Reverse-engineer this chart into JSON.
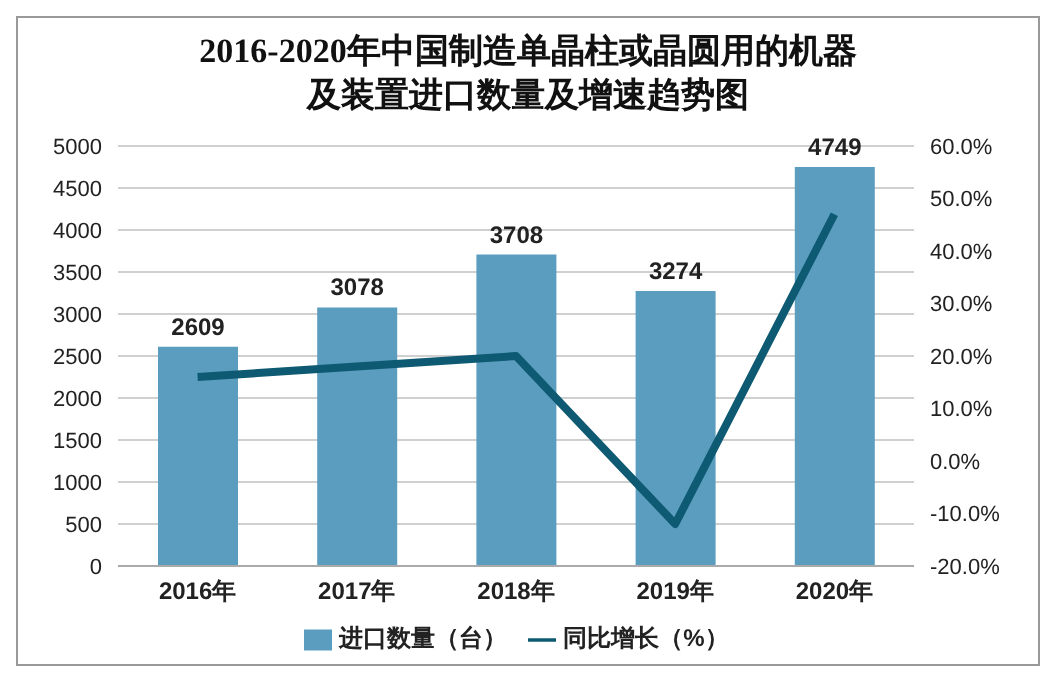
{
  "chart_data": {
    "type": "bar",
    "title": "2016-2020年中国制造单晶柱或晶圆用的机器及装置进口数量及增速趋势图",
    "categories": [
      "2016年",
      "2017年",
      "2018年",
      "2019年",
      "2020年"
    ],
    "series": [
      {
        "name": "进口数量（台）",
        "color": "#5b9dbf",
        "values": [
          2609,
          3078,
          3708,
          3274,
          4749
        ],
        "value_labels": [
          "2609",
          "3078",
          "3708",
          "3274",
          "4749"
        ]
      },
      {
        "name": "同比增长（%）",
        "type": "line",
        "axis": "y2",
        "color": "#0e5a72",
        "values": [
          16,
          18,
          20,
          -12,
          47
        ]
      }
    ],
    "ylim": [
      0,
      5000
    ],
    "yticks": [
      0,
      500,
      1000,
      1500,
      2000,
      2500,
      3000,
      3500,
      4000,
      4500,
      5000
    ],
    "y2lim": [
      -20,
      60
    ],
    "y2ticks": [
      {
        "value": -20,
        "label": "-20.0%"
      },
      {
        "value": -10,
        "label": "-10.0%"
      },
      {
        "value": 0,
        "label": "0.0%"
      },
      {
        "value": 10,
        "label": "10.0%"
      },
      {
        "value": 20,
        "label": "20.0%"
      },
      {
        "value": 30,
        "label": "30.0%"
      },
      {
        "value": 40,
        "label": "40.0%"
      },
      {
        "value": 50,
        "label": "50.0%"
      },
      {
        "value": 60,
        "label": "60.0%"
      }
    ],
    "grid": "y",
    "legend": "bottom",
    "marker": "none"
  }
}
